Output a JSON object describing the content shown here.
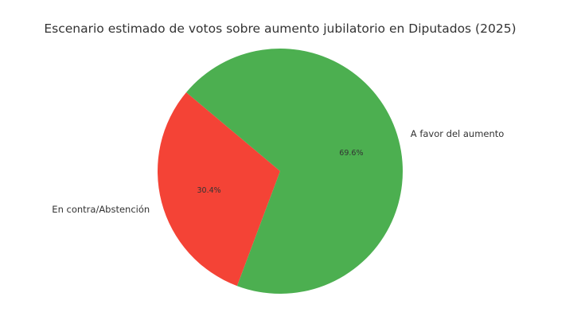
{
  "chart_data": {
    "type": "pie",
    "title": "Escenario estimado de votos sobre aumento jubilatorio en Diputados (2025)",
    "slices": [
      {
        "label": "En contra/Abstención",
        "value": 30.4,
        "pct_label": "30.4%",
        "color": "#f44336"
      },
      {
        "label": "A favor del aumento",
        "value": 69.6,
        "pct_label": "69.6%",
        "color": "#4caf50"
      }
    ],
    "start_angle_deg": 140,
    "direction": "counterclockwise"
  }
}
